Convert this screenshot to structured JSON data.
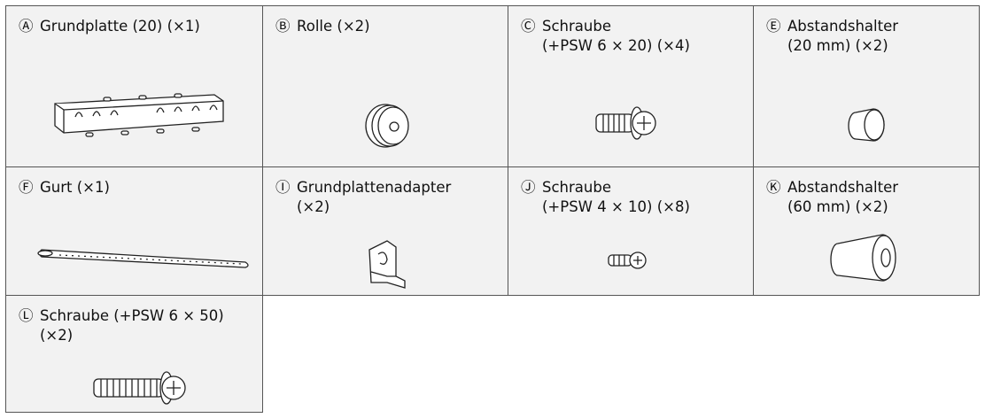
{
  "parts": [
    {
      "letter": "Ⓐ",
      "lines": [
        "Grundplatte (20) (×1)"
      ]
    },
    {
      "letter": "Ⓑ",
      "lines": [
        "Rolle (×2)"
      ]
    },
    {
      "letter": "Ⓒ",
      "lines": [
        "Schraube",
        "(+PSW 6 × 20) (×4)"
      ]
    },
    {
      "letter": "Ⓔ",
      "lines": [
        "Abstandshalter",
        "(20 mm) (×2)"
      ]
    },
    {
      "letter": "Ⓕ",
      "lines": [
        "Gurt (×1)"
      ]
    },
    {
      "letter": "Ⓘ",
      "lines": [
        "Grundplattenadapter",
        "(×2)"
      ]
    },
    {
      "letter": "Ⓙ",
      "lines": [
        "Schraube",
        "(+PSW 4 × 10) (×8)"
      ]
    },
    {
      "letter": "Ⓚ",
      "lines": [
        "Abstandshalter",
        "(60 mm) (×2)"
      ]
    },
    {
      "letter": "Ⓛ",
      "lines": [
        "Schraube (+PSW 6 × 50)",
        "(×2)"
      ]
    }
  ]
}
